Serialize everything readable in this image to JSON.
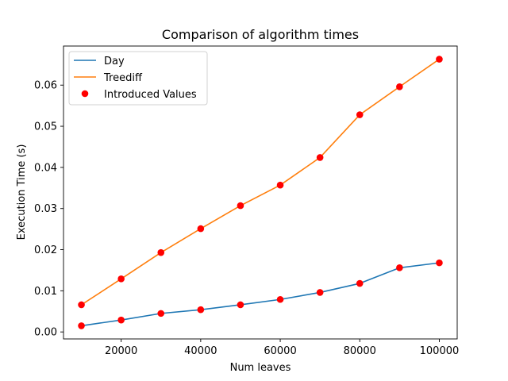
{
  "chart_data": {
    "type": "line",
    "title": "Comparison of algorithm times",
    "xlabel": "Num leaves",
    "ylabel": "Execution Time (s)",
    "xlim": [
      5500,
      104500
    ],
    "ylim": [
      -0.0017,
      0.0695
    ],
    "xticks": [
      20000,
      40000,
      60000,
      80000,
      100000
    ],
    "yticks": [
      0.0,
      0.01,
      0.02,
      0.03,
      0.04,
      0.05,
      0.06
    ],
    "x": [
      10000,
      20000,
      30000,
      40000,
      50000,
      60000,
      70000,
      80000,
      90000,
      100000
    ],
    "series": [
      {
        "name": "Day",
        "color": "#1f77b4",
        "values": [
          0.0015,
          0.0029,
          0.0045,
          0.0054,
          0.0066,
          0.0079,
          0.0096,
          0.0118,
          0.0156,
          0.0168
        ]
      },
      {
        "name": "Treediff",
        "color": "#ff7f0e",
        "values": [
          0.0066,
          0.0129,
          0.0193,
          0.0251,
          0.0307,
          0.0357,
          0.0424,
          0.0528,
          0.0596,
          0.0663
        ]
      }
    ],
    "scatter": {
      "name": "Introduced Values",
      "color": "#ff0000"
    },
    "legend": "top-left",
    "grid": false
  }
}
